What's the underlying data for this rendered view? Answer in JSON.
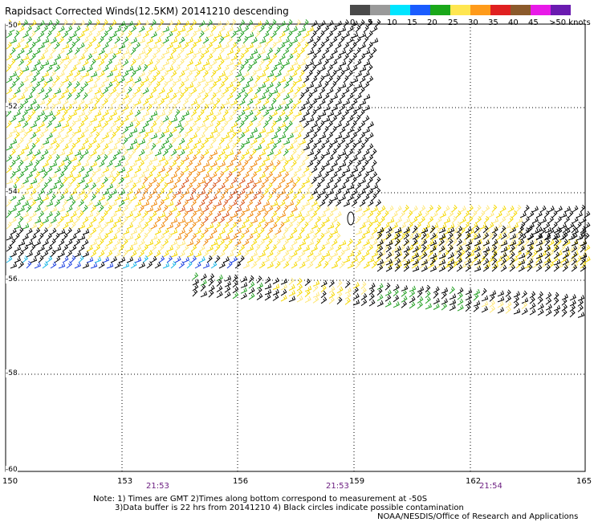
{
  "title": "Rapidsact Corrected Winds(12.5KM) 20141210 descending",
  "legend": {
    "labels": [
      "0",
      "5",
      "10",
      "15",
      "20",
      "25",
      "30",
      "35",
      "40",
      "45",
      ">50 knots"
    ],
    "colors": [
      "#4a4a4a",
      "#9a9a9a",
      "#00e5ff",
      "#1a5cff",
      "#1aa81a",
      "#ffe650",
      "#ff9b1a",
      "#e02020",
      "#8b5a2b",
      "#e81ae8",
      "#6a1bb0"
    ]
  },
  "map": {
    "lat_labels": [
      "-50",
      "-52",
      "-54",
      "-56",
      "-58",
      "-60"
    ],
    "lon_labels": [
      "150",
      "153",
      "156",
      "159",
      "162",
      "165"
    ],
    "time_labels": [
      "21:53",
      "21:53",
      "21:54"
    ]
  },
  "notes": {
    "line1": "Note: 1) Times are GMT 2)Times along bottom correspond to measurement at -50S",
    "line2": "3)Data buffer is 22 hrs from 20141210 4) Black circles indicate possible contamination"
  },
  "credit": "NOAA/NESDIS/Office of Research and Applications"
}
